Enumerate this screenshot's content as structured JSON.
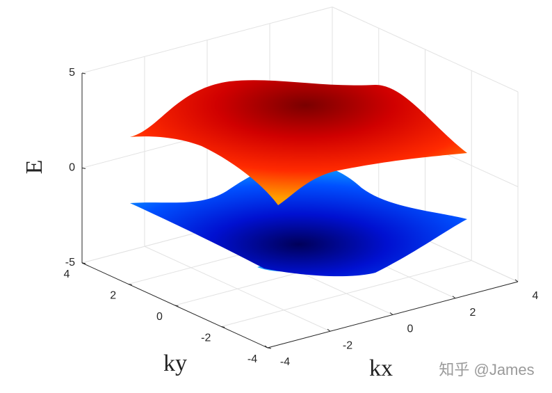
{
  "chart_data": {
    "type": "surface3d",
    "xlabel": "kx",
    "ylabel": "ky",
    "zlabel": "E",
    "xlim": [
      -4,
      4
    ],
    "xticks": [
      -4,
      -2,
      0,
      2,
      4
    ],
    "ylim": [
      -4,
      4
    ],
    "yticks": [
      -4,
      -2,
      0,
      2,
      4
    ],
    "zlim": [
      -5,
      5
    ],
    "zticks": [
      -5,
      0,
      5
    ],
    "grid": true
  },
  "watermark": "知乎 @James"
}
